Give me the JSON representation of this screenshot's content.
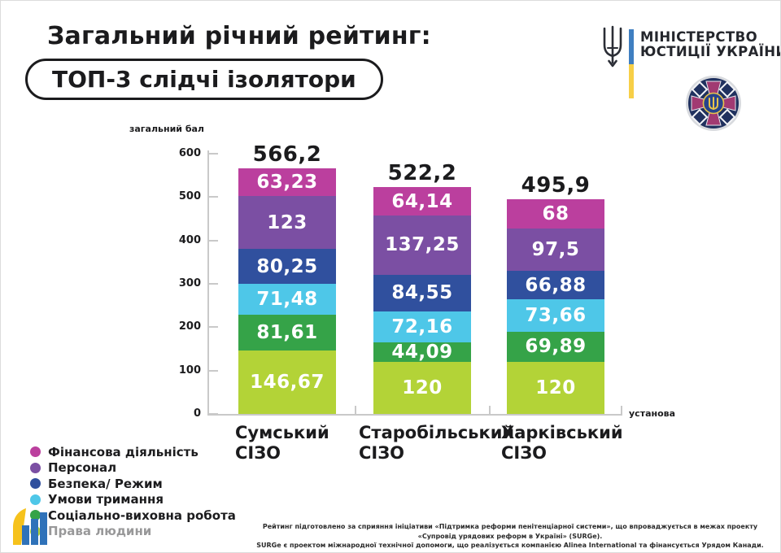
{
  "header": {
    "title": "Загальний річний рейтинг:",
    "subtitle": "ТОП-3 слідчі ізолятори"
  },
  "ministry": {
    "line1": "МІНІСТЕРСТВО",
    "line2": "ЮСТИЦІЇ УКРАЇНИ"
  },
  "icons": {
    "trident": "ukraine-trident",
    "flag_bar": "ukraine-flag-bar",
    "emblem": "penitentiary-service-emblem",
    "org_logo": "rising-bars-logo"
  },
  "chart_data": {
    "type": "bar",
    "stacked": true,
    "ylabel": "загальний бал",
    "xlabel": "установа",
    "ylim": [
      0,
      600
    ],
    "yticks": [
      0,
      100,
      200,
      300,
      400,
      500,
      600
    ],
    "grid": false,
    "legend_position": "bottom-left",
    "categories": [
      "Сумський СІЗО",
      "Старобільський СІЗО",
      "Харківський СІЗО"
    ],
    "category_lines": [
      [
        "Сумський",
        "СІЗО"
      ],
      [
        "Старобільський",
        "СІЗО"
      ],
      [
        "Харківський",
        "СІЗО"
      ]
    ],
    "totals": [
      566.2,
      522.2,
      495.9
    ],
    "total_labels": [
      "566,2",
      "522,2",
      "495,9"
    ],
    "series": [
      {
        "name": "Фінансова діяльність",
        "color": "#bb3f9e",
        "values": [
          63.23,
          64.14,
          68
        ],
        "labels": [
          "63,23",
          "64,14",
          "68"
        ]
      },
      {
        "name": "Персонал",
        "color": "#7b4fa3",
        "values": [
          123,
          137.25,
          97.5
        ],
        "labels": [
          "123",
          "137,25",
          "97,5"
        ]
      },
      {
        "name": "Безпека/ Режим",
        "color": "#30509e",
        "values": [
          80.25,
          84.55,
          66.88
        ],
        "labels": [
          "80,25",
          "84,55",
          "66,88"
        ]
      },
      {
        "name": "Умови тримання",
        "color": "#4ec7e8",
        "values": [
          71.48,
          72.16,
          73.66
        ],
        "labels": [
          "71,48",
          "72,16",
          "73,66"
        ]
      },
      {
        "name": "Соціально-виховна робота",
        "color": "#35a348",
        "values": [
          81.61,
          44.09,
          69.89
        ],
        "labels": [
          "81,61",
          "44,09",
          "69,89"
        ]
      },
      {
        "name": "Права людини",
        "color": "#b3d337",
        "values": [
          146.67,
          120,
          120
        ],
        "labels": [
          "146,67",
          "120",
          "120"
        ]
      }
    ]
  },
  "footnote": {
    "line1": "Рейтинг підготовлено за сприяння ініціативи «Підтримка реформи пенітенціарної системи», що впроваджується в межах проекту «Супровід урядових реформ в Україні» (SURGe).",
    "line2": "SURGe є проектом міжнародної технічної допомоги, що реалізується компанією Alinea International та фінансується Урядом Канади."
  }
}
